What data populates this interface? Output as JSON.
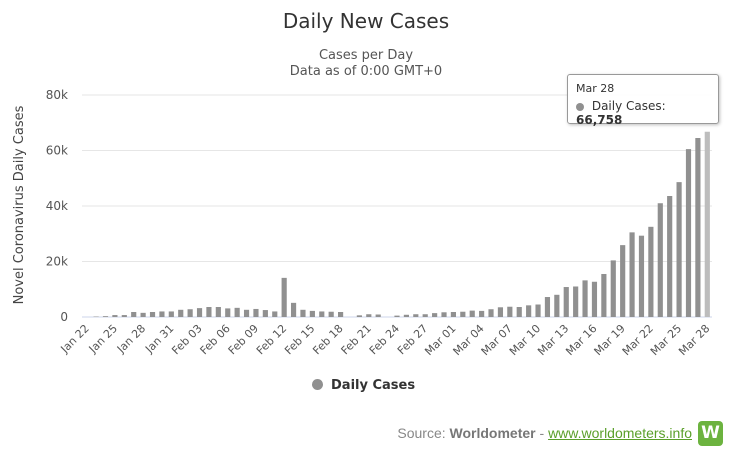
{
  "chart_data": {
    "type": "bar",
    "title": "Daily New Cases",
    "subtitle": "Cases per Day",
    "subtitle2": "Data as of 0:00 GMT+0",
    "ylabel": "Novel Coronavirus Daily Cases",
    "xlabel": "",
    "ylim": [
      0,
      80000
    ],
    "yticks": [
      "0",
      "20k",
      "40k",
      "60k",
      "80k"
    ],
    "ytick_values": [
      0,
      20000,
      40000,
      60000,
      80000
    ],
    "grid": true,
    "legend_position": "bottom-center",
    "categories": [
      "Jan 22",
      "Jan 23",
      "Jan 24",
      "Jan 25",
      "Jan 26",
      "Jan 27",
      "Jan 28",
      "Jan 29",
      "Jan 30",
      "Jan 31",
      "Feb 01",
      "Feb 02",
      "Feb 03",
      "Feb 04",
      "Feb 05",
      "Feb 06",
      "Feb 07",
      "Feb 08",
      "Feb 09",
      "Feb 10",
      "Feb 11",
      "Feb 12",
      "Feb 13",
      "Feb 14",
      "Feb 15",
      "Feb 16",
      "Feb 17",
      "Feb 18",
      "Feb 19",
      "Feb 20",
      "Feb 21",
      "Feb 22",
      "Feb 23",
      "Feb 24",
      "Feb 25",
      "Feb 26",
      "Feb 27",
      "Feb 28",
      "Feb 29",
      "Mar 01",
      "Mar 02",
      "Mar 03",
      "Mar 04",
      "Mar 05",
      "Mar 06",
      "Mar 07",
      "Mar 08",
      "Mar 09",
      "Mar 10",
      "Mar 11",
      "Mar 12",
      "Mar 13",
      "Mar 14",
      "Mar 15",
      "Mar 16",
      "Mar 17",
      "Mar 18",
      "Mar 19",
      "Mar 20",
      "Mar 21",
      "Mar 22",
      "Mar 23",
      "Mar 24",
      "Mar 25",
      "Mar 26",
      "Mar 27",
      "Mar 28"
    ],
    "tick_labels": [
      "Jan 22",
      "Jan 25",
      "Jan 28",
      "Jan 31",
      "Feb 03",
      "Feb 06",
      "Feb 09",
      "Feb 12",
      "Feb 15",
      "Feb 18",
      "Feb 21",
      "Feb 24",
      "Feb 27",
      "Mar 01",
      "Mar 04",
      "Mar 07",
      "Mar 10",
      "Mar 13",
      "Mar 16",
      "Mar 19",
      "Mar 22",
      "Mar 25",
      "Mar 28"
    ],
    "tick_every": 3,
    "series": [
      {
        "name": "Daily Cases",
        "color": "#909090",
        "highlight_color": "#bdbdbd",
        "values": [
          0,
          150,
          300,
          700,
          700,
          1800,
          1500,
          1800,
          2000,
          2000,
          2600,
          2800,
          3200,
          3600,
          3600,
          3100,
          3300,
          2600,
          2900,
          2500,
          2000,
          14100,
          5100,
          2600,
          2200,
          2000,
          1900,
          1800,
          0,
          600,
          1000,
          900,
          0,
          500,
          800,
          1000,
          1000,
          1400,
          1700,
          1800,
          1900,
          2300,
          2200,
          2800,
          3500,
          3700,
          3600,
          4200,
          4500,
          7200,
          8000,
          10800,
          11000,
          13200,
          12700,
          15500,
          20400,
          25900,
          30500,
          29300,
          32500,
          41000,
          43600,
          48600,
          60500,
          64500,
          66758
        ]
      }
    ],
    "tooltip": {
      "date": "Mar 28",
      "label": "Daily Cases:",
      "value": "66,758"
    }
  },
  "legend": {
    "label": "Daily Cases"
  },
  "source": {
    "prefix": "Source: ",
    "name": "Worldometer",
    "separator": " - ",
    "link": "www.worldometers.info",
    "logo_letter": "W"
  }
}
